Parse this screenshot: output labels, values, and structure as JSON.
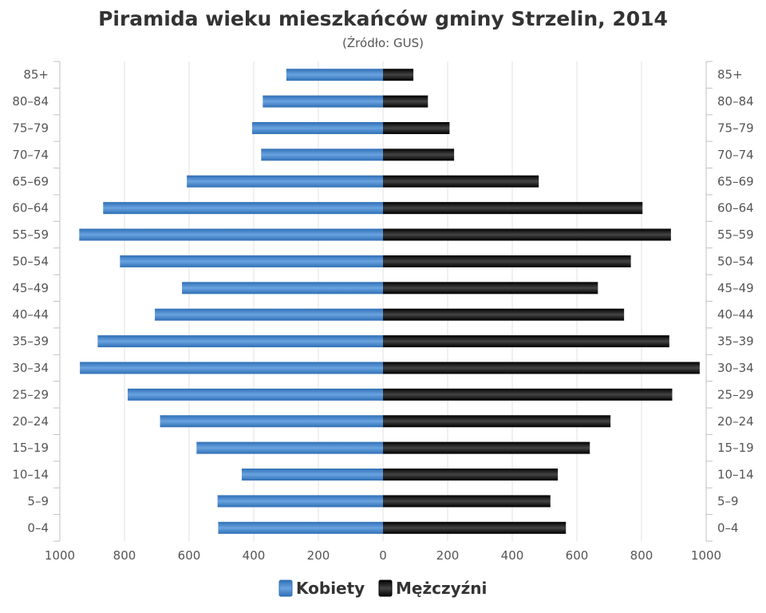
{
  "chart_data": {
    "type": "bar",
    "title": "Piramida wieku mieszkańców gminy Strzelin, 2014",
    "subtitle": "(Źródło: GUS)",
    "categories": [
      "0–4",
      "5–9",
      "10–14",
      "15–19",
      "20–24",
      "25–29",
      "30–34",
      "35–39",
      "40–44",
      "45–49",
      "50–54",
      "55–59",
      "60–64",
      "65–69",
      "70–74",
      "75–79",
      "80–84",
      "85+"
    ],
    "series": [
      {
        "name": "Kobiety",
        "color": "#4a86c8",
        "values": [
          510,
          512,
          437,
          577,
          690,
          790,
          938,
          883,
          706,
          622,
          814,
          940,
          866,
          607,
          377,
          405,
          372,
          299
        ]
      },
      {
        "name": "Mężczyźni",
        "color": "#1a1a1a",
        "values": [
          566,
          518,
          541,
          640,
          704,
          895,
          980,
          886,
          746,
          665,
          767,
          891,
          803,
          482,
          220,
          206,
          139,
          94
        ]
      }
    ],
    "xlim": [
      -1000,
      1000
    ],
    "x_ticks": [
      -1000,
      -800,
      -600,
      -400,
      -200,
      0,
      200,
      400,
      600,
      800,
      1000
    ],
    "x_tick_labels": [
      "1000",
      "800",
      "600",
      "400",
      "200",
      "0",
      "200",
      "400",
      "600",
      "800",
      "1000"
    ],
    "grid": true,
    "legend_position": "bottom-center"
  }
}
